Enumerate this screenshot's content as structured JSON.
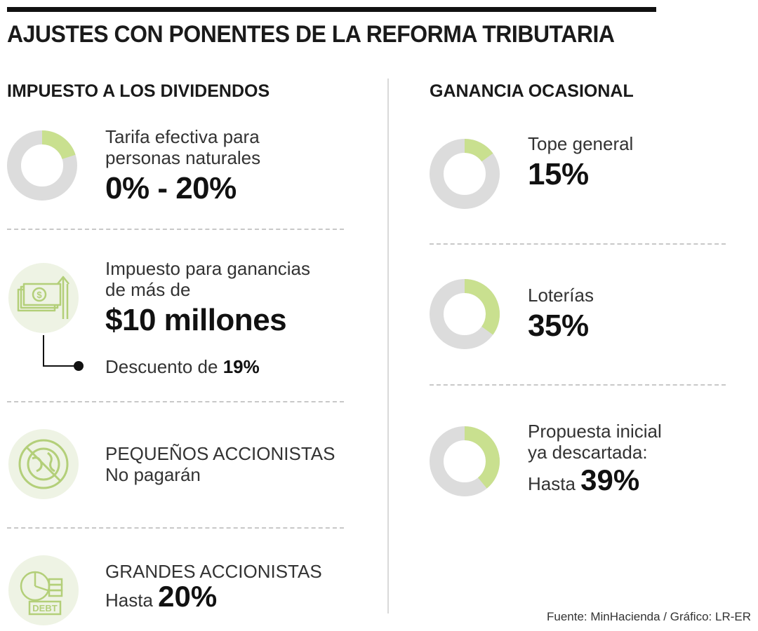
{
  "title": "AJUSTES CON PONENTES DE LA REFORMA TRIBUTARIA",
  "left": {
    "heading": "IMPUESTO A LOS DIVIDENDOS",
    "item1": {
      "label_line1": "Tarifa efectiva para",
      "label_line2": "personas naturales",
      "value": "0% - 20%",
      "donut_fraction": 0.2
    },
    "item2": {
      "label_line1": "Impuesto para ganancias",
      "label_line2": "de más de",
      "value": "$10 millones",
      "discount_prefix": "Descuento de",
      "discount_value": "19%",
      "icon": "money-bill-icon"
    },
    "item3": {
      "label_line1": "PEQUEÑOS ACCIONISTAS",
      "label_line2": "No pagarán",
      "icon": "no-globe-icon"
    },
    "item4": {
      "label_line1": "GRANDES ACCIONISTAS",
      "prefix": "Hasta",
      "value": "20%",
      "icon": "debt-chart-icon",
      "icon_text": "DEBT"
    }
  },
  "right": {
    "heading": "GANANCIA OCASIONAL",
    "item1": {
      "label": "Tope general",
      "value": "15%",
      "donut_fraction": 0.15
    },
    "item2": {
      "label": "Loterías",
      "value": "35%",
      "donut_fraction": 0.35
    },
    "item3": {
      "label_line1": "Propuesta inicial",
      "label_line2": "ya descartada:",
      "prefix": "Hasta",
      "value": "39%",
      "donut_fraction": 0.39
    }
  },
  "source": "Fuente: MinHacienda / Gráfico: LR-ER",
  "colors": {
    "accent": "#c9e08f",
    "ring": "#dcdcdc",
    "icon_bg": "#eef3e4",
    "icon_stroke": "#b3cf79"
  }
}
